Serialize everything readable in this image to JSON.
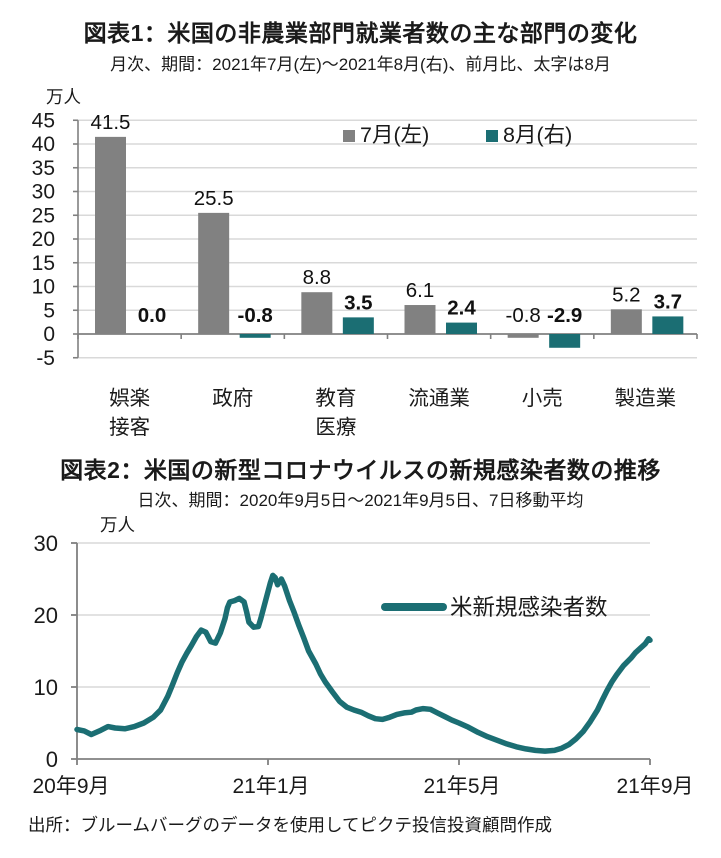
{
  "page": {
    "background": "#ffffff",
    "text_color": "#1a1a1a",
    "accent_teal": "#1B6E73",
    "accent_gray": "#818181",
    "gridline_color": "#d9d9d9",
    "axis_color": "#808080"
  },
  "chart_data": [
    {
      "type": "bar",
      "title": "図表1：米国の非農業部門就業者数の主な部門の変化",
      "subtitle": "月次、期間：2021年7月(左)～2021年8月(右)、前月比、太字は8月",
      "unit": "万人",
      "categories": [
        [
          "娯楽",
          "接客"
        ],
        [
          "政府"
        ],
        [
          "教育",
          "医療"
        ],
        [
          "流通業"
        ],
        [
          "小売"
        ],
        [
          "製造業"
        ]
      ],
      "series": [
        {
          "name": "7月(左)",
          "color": "#818181",
          "bold_labels": false,
          "values": [
            41.5,
            25.5,
            8.8,
            6.1,
            -0.8,
            5.2
          ],
          "labels": [
            "41.5",
            "25.5",
            "8.8",
            "6.1",
            "-0.8",
            "5.2"
          ]
        },
        {
          "name": "8月(右)",
          "color": "#1B6E73",
          "bold_labels": true,
          "values": [
            0.0,
            -0.8,
            3.5,
            2.4,
            -2.9,
            3.7
          ],
          "labels": [
            "0.0",
            "-0.8",
            "3.5",
            "2.4",
            "-2.9",
            "3.7"
          ]
        }
      ],
      "ylim": [
        -5,
        45
      ],
      "yticks": [
        45,
        40,
        35,
        30,
        25,
        20,
        15,
        10,
        5,
        0,
        -5
      ],
      "grid": true,
      "legend_position": "inside-top-right"
    },
    {
      "type": "line",
      "title": "図表2：米国の新型コロナウイルスの新規感染者数の推移",
      "subtitle": "日次、期間：2020年9月5日～2021年9月5日、7日移動平均",
      "unit": "万人",
      "series": [
        {
          "name": "米新規感染者数",
          "color": "#1B6E73",
          "points": [
            [
              0,
              4.1
            ],
            [
              0.15,
              3.9
            ],
            [
              0.3,
              3.4
            ],
            [
              0.5,
              4.0
            ],
            [
              0.65,
              4.5
            ],
            [
              0.8,
              4.3
            ],
            [
              1.0,
              4.2
            ],
            [
              1.2,
              4.5
            ],
            [
              1.4,
              5.0
            ],
            [
              1.6,
              5.8
            ],
            [
              1.75,
              6.8
            ],
            [
              1.9,
              8.7
            ],
            [
              2.0,
              10.3
            ],
            [
              2.1,
              12.0
            ],
            [
              2.2,
              13.5
            ],
            [
              2.3,
              14.7
            ],
            [
              2.4,
              15.8
            ],
            [
              2.5,
              17.0
            ],
            [
              2.6,
              17.9
            ],
            [
              2.7,
              17.6
            ],
            [
              2.8,
              16.3
            ],
            [
              2.9,
              16.1
            ],
            [
              3.0,
              17.5
            ],
            [
              3.1,
              19.5
            ],
            [
              3.15,
              21.0
            ],
            [
              3.2,
              21.8
            ],
            [
              3.3,
              22.0
            ],
            [
              3.4,
              22.3
            ],
            [
              3.5,
              21.8
            ],
            [
              3.55,
              20.5
            ],
            [
              3.6,
              19.0
            ],
            [
              3.7,
              18.3
            ],
            [
              3.8,
              18.4
            ],
            [
              3.85,
              19.5
            ],
            [
              3.95,
              22.0
            ],
            [
              4.05,
              24.5
            ],
            [
              4.1,
              25.5
            ],
            [
              4.15,
              25.2
            ],
            [
              4.2,
              24.2
            ],
            [
              4.28,
              25.0
            ],
            [
              4.35,
              24.0
            ],
            [
              4.45,
              22.0
            ],
            [
              4.55,
              20.3
            ],
            [
              4.65,
              18.5
            ],
            [
              4.75,
              16.8
            ],
            [
              4.85,
              15.0
            ],
            [
              5.0,
              13.2
            ],
            [
              5.1,
              11.8
            ],
            [
              5.2,
              10.7
            ],
            [
              5.35,
              9.3
            ],
            [
              5.5,
              8.0
            ],
            [
              5.65,
              7.2
            ],
            [
              5.8,
              6.8
            ],
            [
              5.95,
              6.5
            ],
            [
              6.1,
              6.0
            ],
            [
              6.25,
              5.6
            ],
            [
              6.4,
              5.5
            ],
            [
              6.55,
              5.8
            ],
            [
              6.7,
              6.2
            ],
            [
              6.85,
              6.4
            ],
            [
              7.0,
              6.5
            ],
            [
              7.1,
              6.8
            ],
            [
              7.25,
              7.0
            ],
            [
              7.4,
              6.9
            ],
            [
              7.55,
              6.4
            ],
            [
              7.7,
              5.9
            ],
            [
              7.85,
              5.4
            ],
            [
              8.0,
              5.0
            ],
            [
              8.2,
              4.4
            ],
            [
              8.4,
              3.7
            ],
            [
              8.6,
              3.1
            ],
            [
              8.8,
              2.6
            ],
            [
              9.0,
              2.1
            ],
            [
              9.2,
              1.7
            ],
            [
              9.4,
              1.4
            ],
            [
              9.6,
              1.2
            ],
            [
              9.8,
              1.1
            ],
            [
              10.0,
              1.2
            ],
            [
              10.15,
              1.5
            ],
            [
              10.3,
              2.0
            ],
            [
              10.45,
              2.8
            ],
            [
              10.6,
              3.8
            ],
            [
              10.75,
              5.2
            ],
            [
              10.9,
              6.8
            ],
            [
              11.0,
              8.2
            ],
            [
              11.1,
              9.5
            ],
            [
              11.2,
              10.7
            ],
            [
              11.3,
              11.7
            ],
            [
              11.45,
              13.0
            ],
            [
              11.6,
              14.0
            ],
            [
              11.7,
              14.8
            ],
            [
              11.8,
              15.4
            ],
            [
              11.9,
              16.0
            ],
            [
              11.97,
              16.7
            ],
            [
              12.0,
              16.5
            ]
          ]
        }
      ],
      "xlim": [
        0,
        12
      ],
      "ylim": [
        0,
        30
      ],
      "yticks": [
        30,
        20,
        10,
        0
      ],
      "xticks": [
        {
          "label": "20年9月",
          "x": 0
        },
        {
          "label": "21年1月",
          "x": 4
        },
        {
          "label": "21年5月",
          "x": 8
        },
        {
          "label": "21年9月",
          "x": 12
        }
      ],
      "grid": true,
      "legend_position": "inside-right"
    }
  ],
  "footer": {
    "source": "出所：ブルームバーグのデータを使用してピクテ投信投資顧問作成"
  }
}
